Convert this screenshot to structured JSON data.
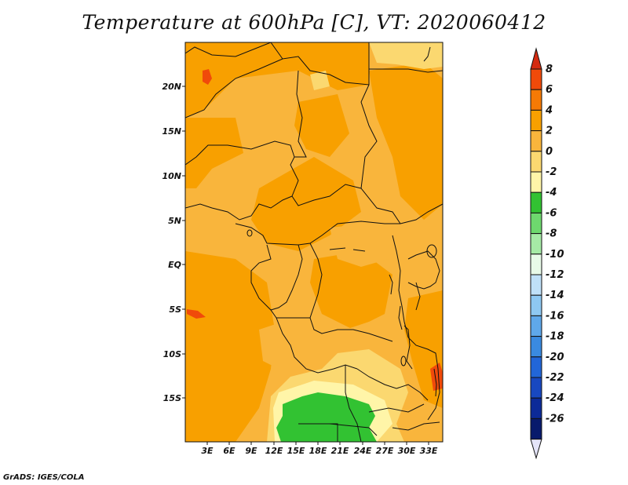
{
  "title": "Temperature at 600hPa [C], VT: 2020060412",
  "credit": "GrADS: IGES/COLA",
  "lat_labels": [
    "20N",
    "15N",
    "10N",
    "5N",
    "EQ",
    "5S",
    "10S",
    "15S"
  ],
  "lon_labels": [
    "3E",
    "6E",
    "9E",
    "12E",
    "15E",
    "18E",
    "21E",
    "24E",
    "27E",
    "30E",
    "33E"
  ],
  "colorbar": {
    "labels": [
      "8",
      "6",
      "4",
      "2",
      "0",
      "-2",
      "-4",
      "-6",
      "-8",
      "-10",
      "-12",
      "-14",
      "-16",
      "-18",
      "-20",
      "-22",
      "-24",
      "-26"
    ],
    "colors": [
      "#d42a10",
      "#f04a0a",
      "#f57a05",
      "#f8a000",
      "#f9b53c",
      "#fbd870",
      "#fff5a8",
      "#32c232",
      "#6ed86e",
      "#a6eaa6",
      "#e8fae8",
      "#bfe0f8",
      "#8ec8f2",
      "#5fa8ea",
      "#3a8ae0",
      "#2266d8",
      "#1848c0",
      "#0c2a98",
      "#081a6c",
      "#e4e4f8"
    ]
  }
}
